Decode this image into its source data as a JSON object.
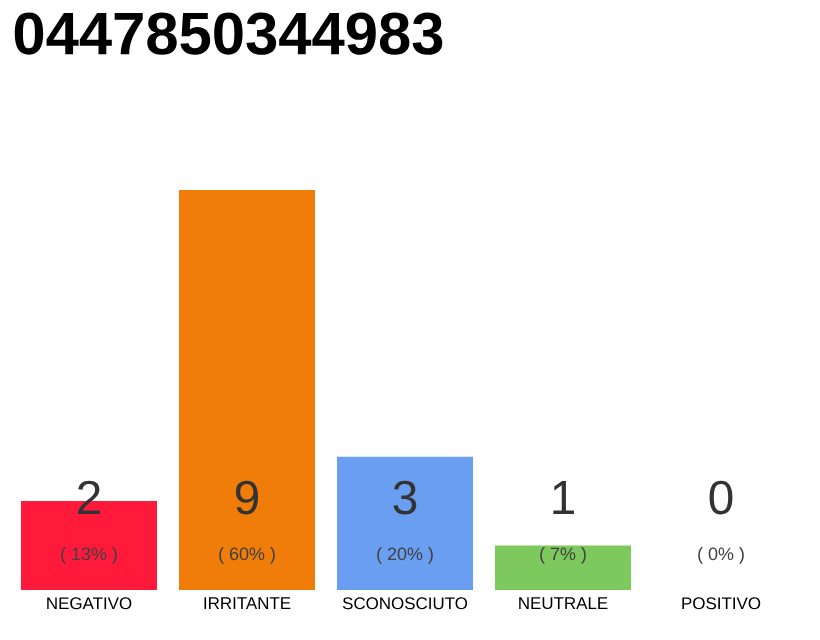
{
  "chart_data": {
    "type": "bar",
    "title": "0447850344983",
    "categories": [
      "NEGATIVO",
      "IRRITANTE",
      "SCONOSCIUTO",
      "NEUTRALE",
      "POSITIVO"
    ],
    "values": [
      2,
      9,
      3,
      1,
      0
    ],
    "colors": [
      "#ff1a3c",
      "#f07c0a",
      "#6a9ef0",
      "#7dc95e",
      "#b0b0b0"
    ],
    "data_labels": true,
    "annotations": [
      "( 13% )",
      "( 60% )",
      "( 20% )",
      "( 7% )",
      "( 0% )"
    ]
  }
}
